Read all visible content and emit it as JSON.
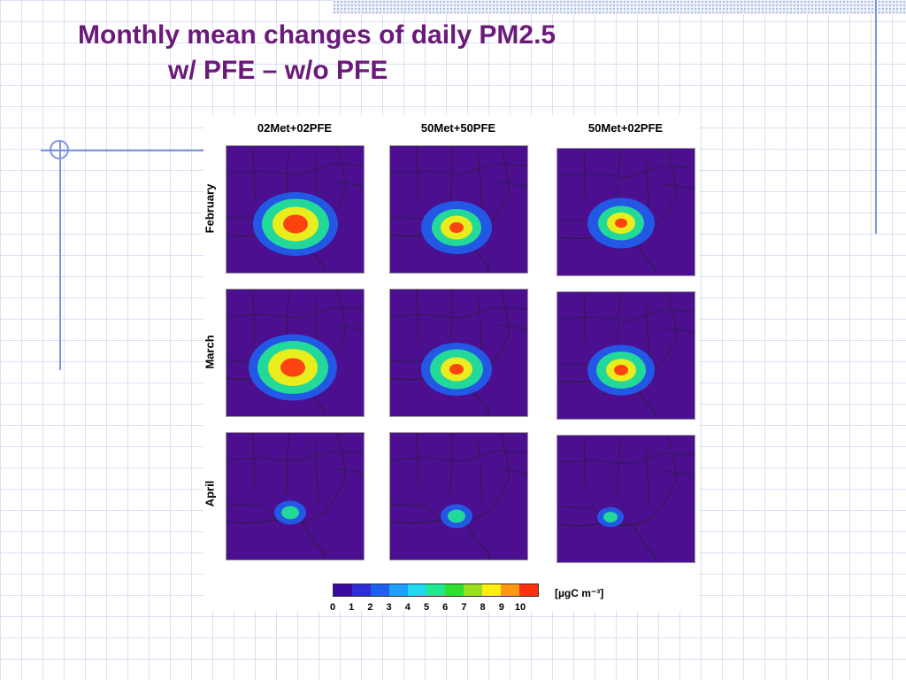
{
  "slide": {
    "title_line1": "Monthly mean changes of daily PM2.5",
    "title_line2": "w/ PFE – w/o PFE"
  },
  "figure": {
    "columns": [
      "02Met+02PFE",
      "50Met+50PFE",
      "50Met+02PFE"
    ],
    "rows": [
      "February",
      "March",
      "April"
    ],
    "colorbar": {
      "unit": "[µgC m⁻³]",
      "ticks": [
        "0",
        "1",
        "2",
        "3",
        "4",
        "5",
        "6",
        "7",
        "8",
        "9",
        "10"
      ],
      "colors": [
        "#3a0aa0",
        "#2d2fd6",
        "#1f5ff0",
        "#1ea0ff",
        "#20d8f0",
        "#22e890",
        "#30e030",
        "#9be020",
        "#ffee10",
        "#ff9a10",
        "#ff3010"
      ]
    }
  }
}
